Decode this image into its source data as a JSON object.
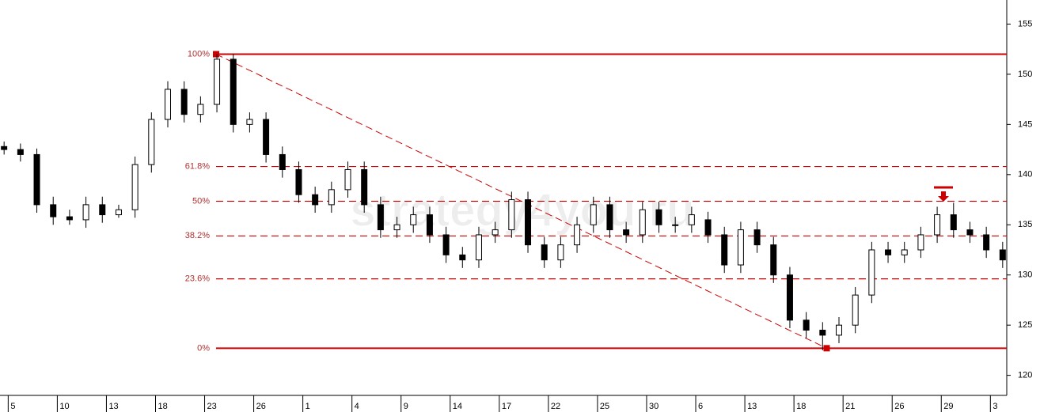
{
  "chart_data": {
    "type": "candlestick",
    "watermark": "strategy4you.ru",
    "x": [
      0.5,
      2.5,
      4.5,
      6.5,
      8.5,
      10.5,
      12.5,
      14.5,
      16.5,
      18.5,
      20.5,
      22.5,
      24.5,
      26.5,
      28.5,
      30.5,
      32.5,
      34.5,
      36.5,
      38.5,
      40.5,
      42.5,
      44.5,
      46.5,
      48.5,
      50.5,
      52.5,
      54.5,
      56.5,
      58.5,
      60.5,
      62.5,
      64.5,
      66.5,
      68.5,
      70.5,
      72.5,
      74.5,
      76.5,
      78.5,
      80.5,
      82.5,
      84.5,
      86.5,
      88.5,
      90.5,
      92.5,
      94.5,
      96.5,
      98.5,
      100.5,
      102.5,
      104.5,
      106.5,
      108.5,
      110.5,
      112.5,
      114.5,
      116.5,
      118.5,
      120.5,
      122.5
    ],
    "open": [
      142.8,
      142.5,
      142,
      137,
      135.8,
      135.5,
      137,
      136,
      136.5,
      141,
      145.5,
      148.5,
      146,
      147,
      151.5,
      145,
      145.5,
      142,
      140.5,
      138,
      137,
      138.5,
      140.5,
      137,
      134.5,
      135,
      136,
      134,
      132,
      131.5,
      134,
      134.5,
      137.5,
      133,
      131.5,
      133,
      135,
      137,
      134.5,
      134,
      136.5,
      135,
      135,
      135.5,
      134,
      131,
      134.5,
      133,
      130,
      125.5,
      124.5,
      124,
      125,
      128,
      132.5,
      132,
      132.5,
      134,
      136,
      134.5,
      134,
      132.5
    ],
    "high": [
      143.3,
      143.1,
      142.6,
      137.8,
      136.5,
      137.8,
      137.8,
      137,
      141.8,
      146.2,
      149.3,
      149.3,
      147.8,
      152,
      152,
      146.2,
      146.2,
      142.8,
      141.3,
      138.8,
      139.3,
      141.3,
      141.3,
      137.8,
      135.8,
      136.8,
      136.8,
      134.8,
      132.8,
      134.8,
      135.3,
      138.3,
      138.3,
      133.8,
      133.8,
      135.8,
      137.8,
      137.8,
      135.3,
      137.3,
      137.3,
      135.8,
      136.8,
      136.3,
      134.8,
      135.3,
      135.3,
      133.8,
      130.8,
      126.3,
      125.3,
      125.8,
      128.8,
      133.3,
      133.3,
      133.3,
      134.8,
      136.8,
      137.2,
      135.3,
      134.8,
      133.3
    ],
    "low": [
      142,
      141.3,
      136.2,
      135,
      135,
      134.7,
      135.2,
      135.7,
      135.7,
      140.2,
      144.7,
      145.2,
      145.2,
      146.2,
      144.2,
      144.2,
      141.2,
      139.7,
      137.2,
      136.2,
      136.2,
      137.7,
      136.2,
      133.7,
      133.7,
      134.2,
      133.2,
      131.2,
      130.7,
      130.7,
      133.2,
      133.7,
      132.2,
      130.7,
      130.7,
      132.2,
      134.2,
      133.7,
      133.2,
      133.2,
      134.2,
      134.2,
      134.2,
      133.2,
      130.2,
      130.2,
      132.2,
      129.2,
      124.7,
      123.7,
      122.5,
      123.2,
      124.2,
      127.2,
      131.2,
      131.2,
      131.7,
      133.2,
      133.7,
      133.2,
      131.7,
      130.7
    ],
    "close": [
      142.5,
      142,
      137,
      135.8,
      135.5,
      137,
      136,
      136.5,
      141,
      145.5,
      148.5,
      146,
      147,
      151.5,
      145,
      145.5,
      142,
      140.5,
      138,
      137,
      138.5,
      140.5,
      137,
      134.5,
      135,
      136,
      134,
      132,
      131.5,
      134,
      134.5,
      137.5,
      133,
      131.5,
      133,
      135,
      137,
      134.5,
      134,
      136.5,
      135,
      135,
      136,
      134,
      131,
      134.5,
      133,
      130,
      125.5,
      124.5,
      124,
      125,
      128,
      132.5,
      132,
      132.5,
      134,
      136,
      134.5,
      134,
      132.5,
      131.5
    ],
    "xlim": [
      0,
      123
    ],
    "xticks": [
      {
        "value": 1,
        "label": "5"
      },
      {
        "value": 7,
        "label": "10"
      },
      {
        "value": 13,
        "label": "13"
      },
      {
        "value": 19,
        "label": "18"
      },
      {
        "value": 25,
        "label": "23"
      },
      {
        "value": 31,
        "label": "26"
      },
      {
        "value": 37,
        "label": "1"
      },
      {
        "value": 43,
        "label": "4"
      },
      {
        "value": 49,
        "label": "9"
      },
      {
        "value": 55,
        "label": "14"
      },
      {
        "value": 61,
        "label": "17"
      },
      {
        "value": 67,
        "label": "22"
      },
      {
        "value": 73,
        "label": "25"
      },
      {
        "value": 79,
        "label": "30"
      },
      {
        "value": 85,
        "label": "6"
      },
      {
        "value": 91,
        "label": "13"
      },
      {
        "value": 97,
        "label": "18"
      },
      {
        "value": 103,
        "label": "21"
      },
      {
        "value": 109,
        "label": "26"
      },
      {
        "value": 115,
        "label": "29"
      },
      {
        "value": 121,
        "label": "3"
      }
    ],
    "ylim": [
      118,
      157.4
    ],
    "yticks": [
      120,
      125,
      130,
      135,
      140,
      145,
      150,
      155
    ],
    "fibonacci": {
      "high": 152,
      "low": 122.7,
      "high_x": 26.4,
      "low_x": 101,
      "levels": [
        100,
        61.8,
        50,
        38.2,
        23.6,
        0
      ],
      "level_labels": [
        "100%",
        "61.8%",
        "50%",
        "38.2%",
        "23.6%",
        "0%"
      ],
      "color": "#cc0000",
      "label_color": "#b03030"
    }
  }
}
